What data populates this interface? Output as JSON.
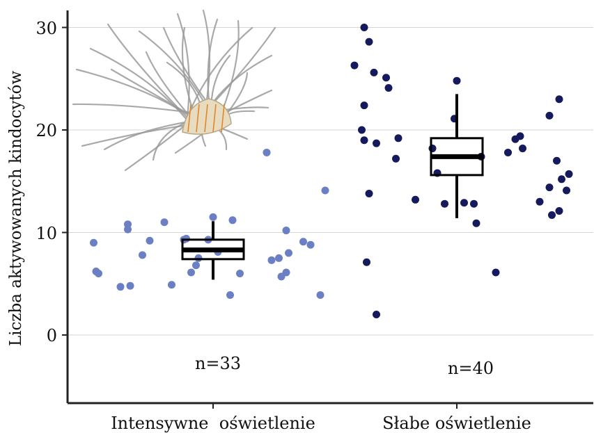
{
  "chart_data": {
    "type": "scatter",
    "ylabel": "Liczba aktywowanych kindocytów",
    "ylim": [
      -6.5,
      32
    ],
    "yticks": [
      "0",
      "10",
      "20",
      "30"
    ],
    "grid": true,
    "categories": [
      "Intensywne  oświetlenie",
      "Słabe oświetlenie"
    ],
    "series": [
      {
        "color": "#6a7fc4",
        "n_label": "n=33",
        "box": {
          "whisker_low": 5.4,
          "q1": 7.4,
          "median": 8.3,
          "q3": 9.3,
          "whisker_high": 11.1
        },
        "points": [
          {
            "x": 0.51,
            "y": 9.0
          },
          {
            "x": 0.52,
            "y": 6.2
          },
          {
            "x": 0.53,
            "y": 6.0
          },
          {
            "x": 0.62,
            "y": 4.7
          },
          {
            "x": 0.65,
            "y": 10.3
          },
          {
            "x": 0.65,
            "y": 10.8
          },
          {
            "x": 0.66,
            "y": 4.8
          },
          {
            "x": 0.71,
            "y": 7.8
          },
          {
            "x": 0.74,
            "y": 9.2
          },
          {
            "x": 0.8,
            "y": 11.0
          },
          {
            "x": 0.83,
            "y": 4.9
          },
          {
            "x": 0.88,
            "y": 9.3
          },
          {
            "x": 0.91,
            "y": 6.1
          },
          {
            "x": 0.93,
            "y": 6.8
          },
          {
            "x": 0.94,
            "y": 7.5
          },
          {
            "x": 0.98,
            "y": 9.3
          },
          {
            "x": 1.0,
            "y": 11.5
          },
          {
            "x": 1.08,
            "y": 11.2
          },
          {
            "x": 1.07,
            "y": 3.9
          },
          {
            "x": 1.11,
            "y": 6.0
          },
          {
            "x": 1.24,
            "y": 7.3
          },
          {
            "x": 1.27,
            "y": 7.5
          },
          {
            "x": 1.3,
            "y": 10.2
          },
          {
            "x": 1.28,
            "y": 5.7
          },
          {
            "x": 1.3,
            "y": 6.1
          },
          {
            "x": 1.31,
            "y": 8.0
          },
          {
            "x": 1.37,
            "y": 9.1
          },
          {
            "x": 1.4,
            "y": 8.8
          },
          {
            "x": 1.44,
            "y": 3.9
          },
          {
            "x": 1.46,
            "y": 14.1
          },
          {
            "x": 1.22,
            "y": 17.8
          },
          {
            "x": 0.89,
            "y": 9.4
          },
          {
            "x": 1.02,
            "y": 8.1
          }
        ]
      },
      {
        "color": "#141a5c",
        "n_label": "n=40",
        "box": {
          "whisker_low": 11.4,
          "q1": 15.6,
          "median": 17.4,
          "q3": 19.2,
          "whisker_high": 23.5
        },
        "points": [
          {
            "x": 1.58,
            "y": 26.3
          },
          {
            "x": 1.62,
            "y": 30.0
          },
          {
            "x": 1.64,
            "y": 28.6
          },
          {
            "x": 1.66,
            "y": 25.6
          },
          {
            "x": 1.71,
            "y": 25.1
          },
          {
            "x": 1.72,
            "y": 24.1
          },
          {
            "x": 1.62,
            "y": 22.4
          },
          {
            "x": 1.61,
            "y": 20.0
          },
          {
            "x": 1.62,
            "y": 19.0
          },
          {
            "x": 1.67,
            "y": 18.7
          },
          {
            "x": 1.76,
            "y": 19.2
          },
          {
            "x": 1.75,
            "y": 17.2
          },
          {
            "x": 1.64,
            "y": 13.8
          },
          {
            "x": 1.63,
            "y": 7.1
          },
          {
            "x": 1.67,
            "y": 2.0
          },
          {
            "x": 1.83,
            "y": 13.2
          },
          {
            "x": 1.9,
            "y": 18.2
          },
          {
            "x": 1.92,
            "y": 15.8
          },
          {
            "x": 1.95,
            "y": 12.8
          },
          {
            "x": 2.0,
            "y": 24.8
          },
          {
            "x": 1.99,
            "y": 21.1
          },
          {
            "x": 2.03,
            "y": 12.9
          },
          {
            "x": 2.07,
            "y": 12.8
          },
          {
            "x": 2.08,
            "y": 10.9
          },
          {
            "x": 2.1,
            "y": 17.4
          },
          {
            "x": 2.16,
            "y": 6.1
          },
          {
            "x": 2.21,
            "y": 17.8
          },
          {
            "x": 2.24,
            "y": 19.1
          },
          {
            "x": 2.26,
            "y": 19.4
          },
          {
            "x": 2.27,
            "y": 18.2
          },
          {
            "x": 2.34,
            "y": 13.0
          },
          {
            "x": 2.38,
            "y": 14.4
          },
          {
            "x": 2.38,
            "y": 21.4
          },
          {
            "x": 2.39,
            "y": 11.7
          },
          {
            "x": 2.42,
            "y": 23.0
          },
          {
            "x": 2.41,
            "y": 17.0
          },
          {
            "x": 2.43,
            "y": 15.2
          },
          {
            "x": 2.42,
            "y": 12.1
          },
          {
            "x": 2.45,
            "y": 14.1
          },
          {
            "x": 2.46,
            "y": 15.7
          }
        ]
      }
    ]
  },
  "illustration": {
    "icon": "sea-anemone-illustration",
    "tentacle_color": "#9a9a9a",
    "body_color": "#e8dcc0",
    "accent_color": "#e0862a"
  }
}
